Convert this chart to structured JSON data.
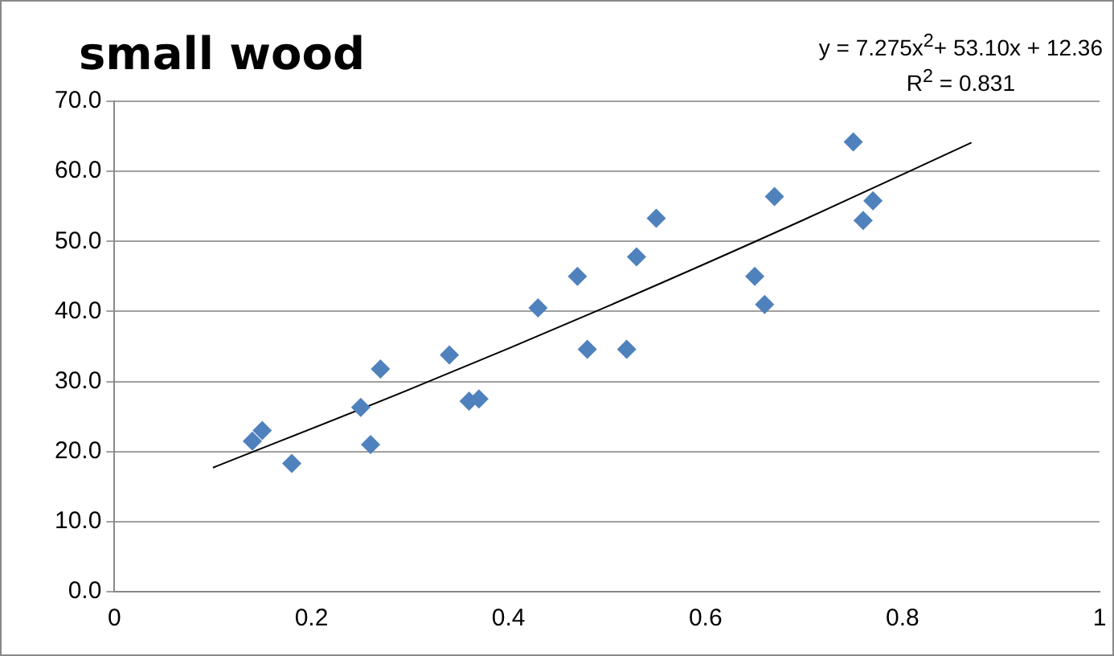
{
  "chart_data": {
    "type": "scatter",
    "title": "small wood",
    "annotations": [
      "y = 7.275x$^{2}$+ 53.10x + 12.36",
      "R$^{2}$ = 0.831"
    ],
    "series": [
      {
        "color": "#4f81bd",
        "marker": "diamond",
        "x": [
          0.14,
          0.15,
          0.18,
          0.25,
          0.26,
          0.27,
          0.34,
          0.36,
          0.37,
          0.43,
          0.47,
          0.48,
          0.52,
          0.53,
          0.55,
          0.65,
          0.66,
          0.67,
          0.75,
          0.76,
          0.77
        ],
        "values": [
          21.5,
          23,
          18.3,
          26.3,
          21,
          31.8,
          33.8,
          27.2,
          27.5,
          40.5,
          45,
          34.6,
          34.6,
          47.8,
          53.3,
          45,
          41,
          56.4,
          64.2,
          53,
          55.8
        ]
      },
      {
        "type": "line",
        "color": "#000000",
        "marker": "none",
        "x": [
          0.1,
          0.3,
          0.5,
          0.7,
          0.87
        ],
        "values": [
          17.7,
          28.9,
          40.7,
          53.1,
          64.1
        ]
      }
    ],
    "xlim": [
      0,
      1
    ],
    "xticks": [
      0,
      0.2,
      0.4,
      0.6,
      0.8,
      1
    ],
    "ylim": [
      0,
      70
    ],
    "yticks": [
      {
        "value": 0,
        "label": "0.0"
      },
      {
        "value": 10,
        "label": "10.0"
      },
      {
        "value": 20,
        "label": "20.0"
      },
      {
        "value": 30,
        "label": "30.0"
      },
      {
        "value": 40,
        "label": "40.0"
      },
      {
        "value": 50,
        "label": "50.0"
      },
      {
        "value": 60,
        "label": "60.0"
      },
      {
        "value": 70,
        "label": "70.0"
      }
    ],
    "grid": "y",
    "legend": false
  }
}
